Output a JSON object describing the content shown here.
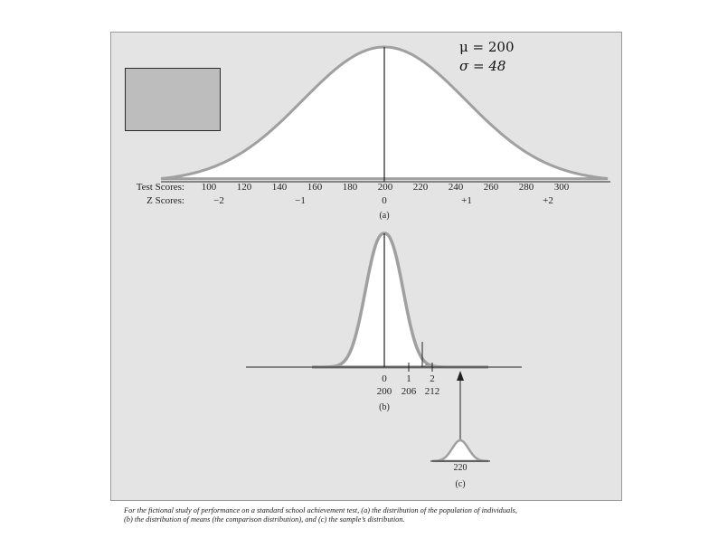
{
  "params": {
    "mu": "μ = 200",
    "sigma": "σ = 48"
  },
  "panel_a": {
    "test_scores_label": "Test Scores:",
    "z_scores_label": "Z Scores:",
    "test_scores": [
      "100",
      "120",
      "140",
      "160",
      "180",
      "200",
      "220",
      "240",
      "260",
      "280",
      "300"
    ],
    "z_scores": [
      "−2",
      "−1",
      "0",
      "+1",
      "+2"
    ],
    "label": "(a)"
  },
  "panel_b": {
    "z_ticks": [
      "0",
      "1",
      "2"
    ],
    "score_ticks": [
      "200",
      "206",
      "212"
    ],
    "label": "(b)"
  },
  "panel_c": {
    "value": "220",
    "label": "(c)"
  },
  "caption": [
    "For the fictional study of performance on a standard school achievement test, (a) the distribution of the population of individuals,",
    "(b) the distribution of means (the comparison distribution), and (c) the sample’s distribution."
  ],
  "colors": {
    "panel_bg": "#e4e4e4",
    "curve_outline": "#9a9a9a",
    "placeholder_fill": "#bdbdbd"
  }
}
